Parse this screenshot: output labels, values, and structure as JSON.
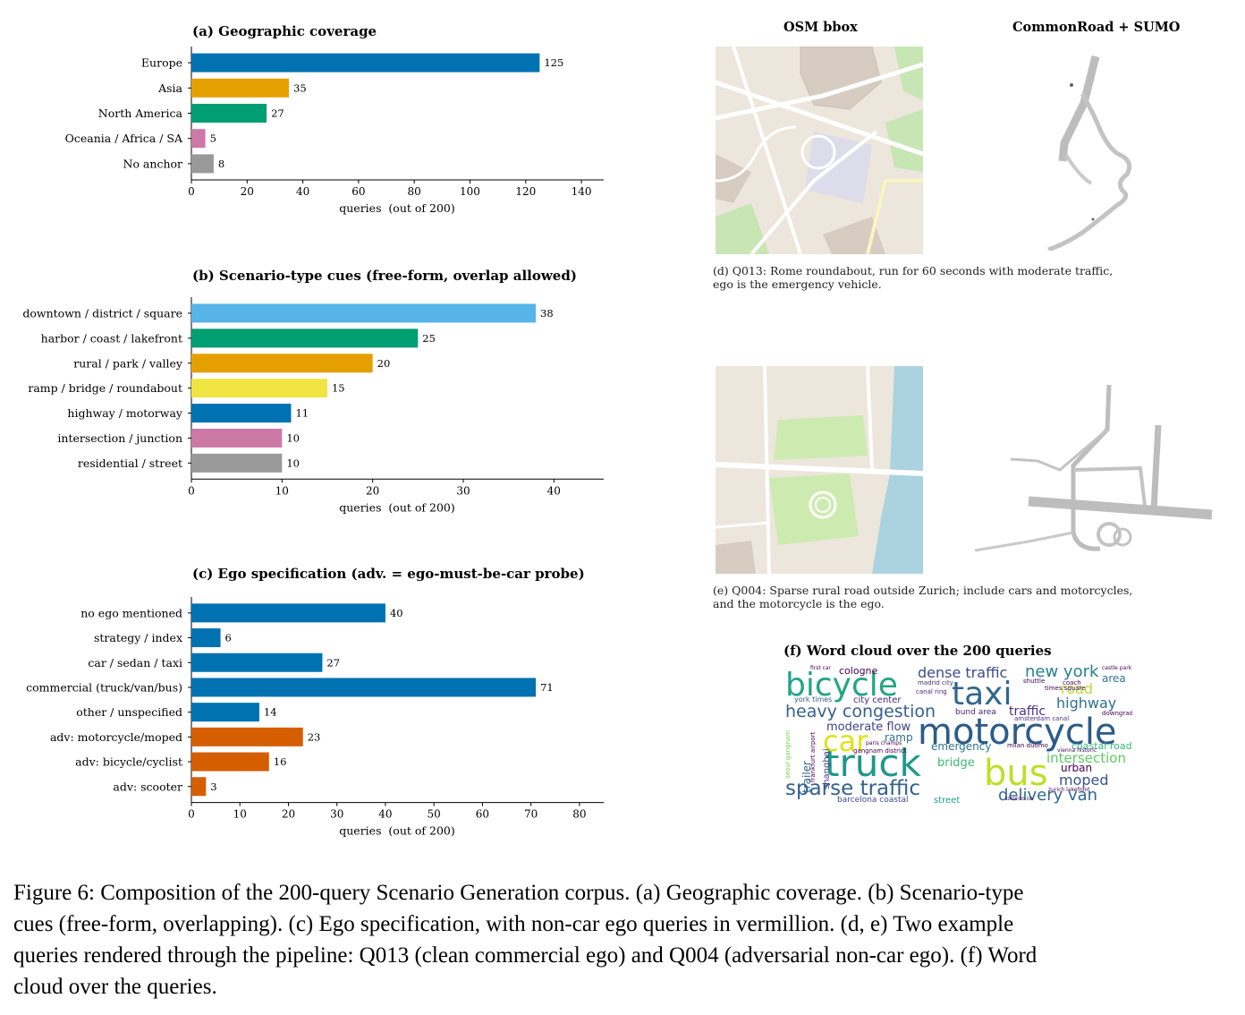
{
  "panel_a": {
    "title": "(a) Geographic coverage",
    "xlabel": "queries  (out of 200)"
  },
  "panel_b": {
    "title": "(b) Scenario-type cues  (free-form, overlap allowed)",
    "xlabel": "queries  (out of 200)"
  },
  "panel_c": {
    "title": "(c) Ego specification  (adv. = ego-must-be-car probe)",
    "xlabel": "queries  (out of 200)"
  },
  "panel_d": {
    "col_left": "OSM bbox",
    "col_right": "CommonRoad + SUMO",
    "caption_line1": "(d) Q013: Rome roundabout, run for 60 seconds with moderate traffic,",
    "caption_line2": "ego is the emergency vehicle."
  },
  "panel_e": {
    "caption_line1": "(e) Q004: Sparse rural road outside Zurich; include cars and motorcycles,",
    "caption_line2": "and the motorcycle is the ego."
  },
  "panel_f": {
    "title": "(f) Word cloud over the 200 queries",
    "words": [
      "bicycle",
      "taxi",
      "motorcycle",
      "truck",
      "bus",
      "car",
      "heavy congestion",
      "sparse traffic",
      "dense traffic",
      "new york",
      "road",
      "highway",
      "delivery van",
      "moped",
      "urban",
      "bridge",
      "intersection",
      "emergency",
      "moderate flow",
      "ramp",
      "traffic",
      "area",
      "coastal road",
      "city center",
      "york times",
      "cologne",
      "shanghai",
      "trailer",
      "barcelona coastal",
      "street",
      "bund area",
      "canal ring",
      "madrid city",
      "times square",
      "amsterdam canal",
      "milan duomo",
      "gangnam district",
      "paris champs",
      "first car",
      "downgrade",
      "castle park",
      "shuttle",
      "coach",
      "frankfurt airport",
      "seoul gangnam",
      "zurich lakefront",
      "vienna historic",
      "toronto cn"
    ]
  },
  "figure_caption": {
    "line1": "Figure 6: Composition of the 200-query Scenario Generation corpus. (a) Geographic coverage. (b) Scenario-type",
    "line2": "cues (free-form, overlapping). (c) Ego specification, with non-car ego queries in vermillion. (d, e) Two example",
    "line3": "queries rendered through the pipeline: Q013 (clean commercial ego) and Q004 (adversarial non-car ego). (f) Word",
    "line4": "cloud over the queries."
  },
  "chart_data": [
    {
      "type": "bar",
      "orientation": "horizontal",
      "title": "(a) Geographic coverage",
      "xlabel": "queries  (out of 200)",
      "categories": [
        "Europe",
        "Asia",
        "North America",
        "Oceania / Africa / SA",
        "No anchor"
      ],
      "values": [
        125,
        35,
        27,
        5,
        8
      ],
      "colors": [
        "#0072b2",
        "#e69f00",
        "#009e73",
        "#cc79a7",
        "#999999"
      ],
      "xlim": [
        0,
        148
      ],
      "xticks": [
        0,
        20,
        40,
        60,
        80,
        100,
        120,
        140
      ]
    },
    {
      "type": "bar",
      "orientation": "horizontal",
      "title": "(b) Scenario-type cues  (free-form, overlap allowed)",
      "xlabel": "queries  (out of 200)",
      "categories": [
        "downtown / district / square",
        "harbor / coast / lakefront",
        "rural / park / valley",
        "ramp / bridge / roundabout",
        "highway / motorway",
        "intersection / junction",
        "residential / street"
      ],
      "values": [
        38,
        25,
        20,
        15,
        11,
        10,
        10
      ],
      "colors": [
        "#56b4e9",
        "#009e73",
        "#e69f00",
        "#f0e442",
        "#0072b2",
        "#cc79a7",
        "#999999"
      ],
      "xlim": [
        0,
        45.5
      ],
      "xticks": [
        0,
        10,
        20,
        30,
        40
      ]
    },
    {
      "type": "bar",
      "orientation": "horizontal",
      "title": "(c) Ego specification  (adv. = ego-must-be-car probe)",
      "xlabel": "queries  (out of 200)",
      "categories": [
        "no ego mentioned",
        "strategy / index",
        "car / sedan / taxi",
        "commercial (truck/van/bus)",
        "other / unspecified",
        "adv: motorcycle/moped",
        "adv: bicycle/cyclist",
        "adv: scooter"
      ],
      "values": [
        40,
        6,
        27,
        71,
        14,
        23,
        16,
        3
      ],
      "colors": [
        "#0072b2",
        "#0072b2",
        "#0072b2",
        "#0072b2",
        "#0072b2",
        "#d55e00",
        "#d55e00",
        "#d55e00"
      ],
      "xlim": [
        0,
        85
      ],
      "xticks": [
        0,
        10,
        20,
        30,
        40,
        50,
        60,
        70,
        80
      ]
    }
  ]
}
